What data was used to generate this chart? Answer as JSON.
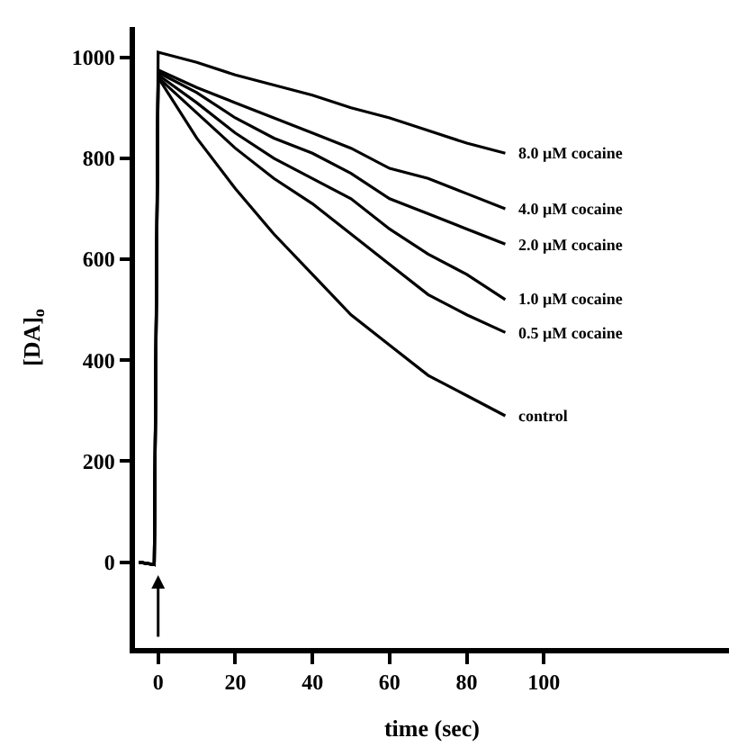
{
  "chart_data": {
    "type": "line",
    "xlabel": "time (sec)",
    "ylabel": "[DA]$_{o}$",
    "x": [
      -5,
      -1,
      0,
      10,
      20,
      30,
      40,
      50,
      60,
      70,
      80,
      90
    ],
    "series": [
      {
        "name": "8.0 μM cocaine",
        "color": "#000000",
        "values": [
          0,
          -5,
          1010,
          990,
          965,
          945,
          925,
          900,
          880,
          855,
          830,
          810
        ]
      },
      {
        "name": "4.0 μM cocaine",
        "color": "#000000",
        "values": [
          0,
          -5,
          975,
          940,
          910,
          880,
          850,
          820,
          780,
          760,
          730,
          700
        ]
      },
      {
        "name": "2.0 μM cocaine",
        "color": "#000000",
        "values": [
          0,
          -5,
          970,
          930,
          880,
          840,
          810,
          770,
          720,
          690,
          660,
          630
        ]
      },
      {
        "name": "1.0 μM cocaine",
        "color": "#000000",
        "values": [
          0,
          -5,
          965,
          910,
          850,
          800,
          760,
          720,
          660,
          610,
          570,
          520
        ]
      },
      {
        "name": "0.5 μM cocaine",
        "color": "#000000",
        "values": [
          0,
          -5,
          960,
          890,
          820,
          760,
          710,
          650,
          590,
          530,
          490,
          455
        ]
      },
      {
        "name": "control",
        "color": "#000000",
        "values": [
          0,
          -5,
          960,
          840,
          740,
          650,
          570,
          490,
          430,
          370,
          330,
          290
        ]
      }
    ],
    "xlim": [
      -6,
      148
    ],
    "xticks": [
      0,
      20,
      40,
      60,
      80,
      100
    ],
    "ylim": [
      -170,
      1060
    ],
    "yticks": [
      0,
      200,
      400,
      600,
      800,
      1000
    ],
    "legend": false,
    "marker": "none",
    "line_style": "solid"
  }
}
